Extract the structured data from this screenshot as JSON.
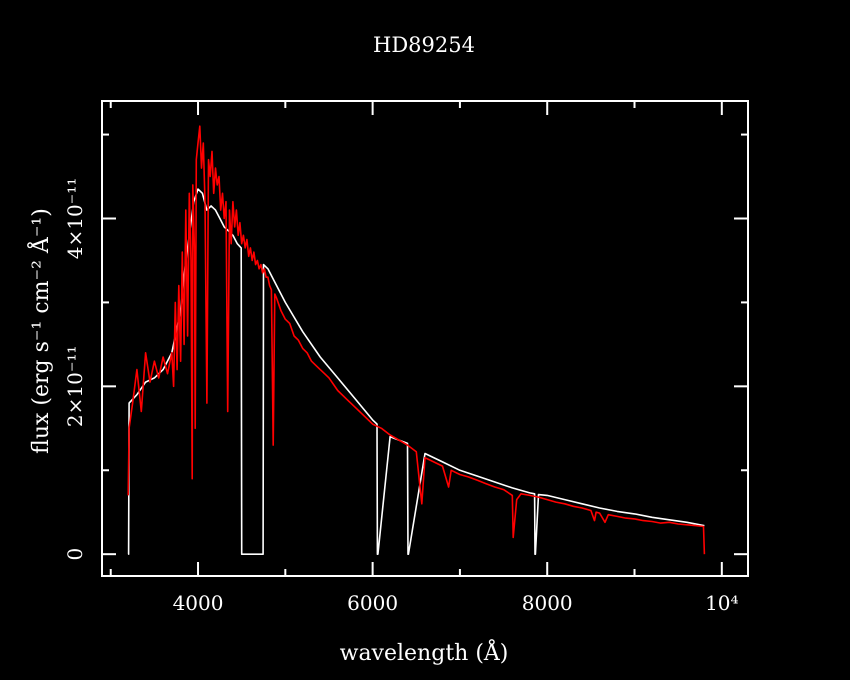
{
  "chart_data": {
    "type": "line",
    "title": "HD89254",
    "xlabel": "wavelength (Å)",
    "ylabel": "flux (erg s⁻¹ cm⁻² Å⁻¹)",
    "xlim": [
      2900,
      10300
    ],
    "ylim": [
      -2.6e-12,
      5.4e-11
    ],
    "x_ticks": [
      {
        "value": 4000,
        "label": "4000"
      },
      {
        "value": 6000,
        "label": "6000"
      },
      {
        "value": 8000,
        "label": "8000"
      },
      {
        "value": 10000,
        "label": "10⁴"
      }
    ],
    "y_ticks": [
      {
        "value": 0,
        "label": "0"
      },
      {
        "value": 2e-11,
        "label": "2×10⁻¹¹"
      },
      {
        "value": 4e-11,
        "label": "4×10⁻¹¹"
      }
    ],
    "grid": false,
    "series": [
      {
        "color": "#ffffff",
        "x": [
          3200,
          3205,
          3210,
          3300,
          3400,
          3500,
          3600,
          3700,
          3800,
          3850,
          3900,
          3950,
          4000,
          4050,
          4100,
          4150,
          4200,
          4250,
          4300,
          4350,
          4400,
          4450,
          4495,
          4500,
          4505,
          4600,
          4740,
          4745,
          4750,
          4800,
          4900,
          5000,
          5200,
          5400,
          5600,
          5800,
          6000,
          6050,
          6055,
          6060,
          6200,
          6400,
          6405,
          6410,
          6600,
          6800,
          7000,
          7200,
          7400,
          7600,
          7800,
          7855,
          7860,
          7865,
          7900,
          8000,
          8200,
          8400,
          8600,
          8800,
          9000,
          9200,
          9400,
          9600,
          9800
        ],
        "y": [
          0,
          0,
          1.8e-11,
          1.9e-11,
          2.05e-11,
          2.1e-11,
          2.2e-11,
          2.4e-11,
          2.9e-11,
          3.4e-11,
          3.8e-11,
          4.2e-11,
          4.35e-11,
          4.3e-11,
          4.1e-11,
          4.15e-11,
          4.1e-11,
          4e-11,
          3.9e-11,
          3.85e-11,
          3.8e-11,
          3.7e-11,
          3.65e-11,
          0,
          0,
          0,
          0,
          0,
          3.45e-11,
          3.4e-11,
          3.2e-11,
          3e-11,
          2.65e-11,
          2.35e-11,
          2.1e-11,
          1.85e-11,
          1.6e-11,
          1.55e-11,
          0,
          0,
          1.4e-11,
          1.32e-11,
          0,
          0,
          1.2e-11,
          1.1e-11,
          1e-11,
          9.3e-12,
          8.6e-12,
          7.9e-12,
          7.3e-12,
          7.2e-12,
          0,
          0,
          7.1e-12,
          7e-12,
          6.5e-12,
          6e-12,
          5.5e-12,
          5.1e-12,
          4.8e-12,
          4.4e-12,
          4.1e-12,
          3.8e-12,
          3.4e-12
        ]
      },
      {
        "color": "#ff0000",
        "x": [
          3200,
          3210,
          3250,
          3300,
          3350,
          3400,
          3450,
          3500,
          3550,
          3600,
          3650,
          3700,
          3720,
          3740,
          3760,
          3780,
          3800,
          3820,
          3840,
          3860,
          3880,
          3900,
          3920,
          3933,
          3940,
          3960,
          3968,
          3980,
          4000,
          4020,
          4040,
          4060,
          4080,
          4102,
          4120,
          4140,
          4160,
          4180,
          4200,
          4220,
          4240,
          4260,
          4280,
          4300,
          4320,
          4340,
          4360,
          4380,
          4400,
          4420,
          4440,
          4460,
          4480,
          4500,
          4520,
          4540,
          4560,
          4580,
          4600,
          4620,
          4640,
          4660,
          4680,
          4700,
          4720,
          4740,
          4760,
          4780,
          4800,
          4820,
          4840,
          4861,
          4880,
          4900,
          4950,
          5000,
          5050,
          5100,
          5150,
          5200,
          5250,
          5300,
          5350,
          5400,
          5450,
          5500,
          5600,
          5700,
          5800,
          5900,
          6000,
          6100,
          6200,
          6300,
          6400,
          6500,
          6563,
          6600,
          6700,
          6800,
          6870,
          6900,
          7000,
          7100,
          7200,
          7300,
          7400,
          7500,
          7600,
          7610,
          7650,
          7700,
          7800,
          7900,
          8000,
          8100,
          8200,
          8300,
          8400,
          8500,
          8542,
          8560,
          8600,
          8662,
          8700,
          8800,
          8900,
          9000,
          9100,
          9200,
          9300,
          9400,
          9500,
          9600,
          9700,
          9790,
          9800
        ],
        "y": [
          7e-12,
          1.5e-11,
          1.8e-11,
          2.2e-11,
          1.7e-11,
          2.4e-11,
          2.05e-11,
          2.3e-11,
          2.1e-11,
          2.35e-11,
          2.15e-11,
          2.4e-11,
          2e-11,
          3e-11,
          2.2e-11,
          3.2e-11,
          2.3e-11,
          3.6e-11,
          2.5e-11,
          4.1e-11,
          2.6e-11,
          4.3e-11,
          3.5e-11,
          9e-12,
          4.4e-11,
          3.6e-11,
          1.5e-11,
          4.7e-11,
          4.9e-11,
          5.1e-11,
          4.6e-11,
          4.9e-11,
          4.2e-11,
          1.8e-11,
          4.7e-11,
          4.5e-11,
          4.8e-11,
          4.3e-11,
          4.6e-11,
          4.4e-11,
          4.5e-11,
          4.1e-11,
          4.3e-11,
          4e-11,
          4.2e-11,
          1.7e-11,
          4.1e-11,
          3.7e-11,
          4.2e-11,
          3.9e-11,
          4.1e-11,
          3.8e-11,
          3.95e-11,
          3.7e-11,
          3.8e-11,
          3.65e-11,
          3.75e-11,
          3.55e-11,
          3.65e-11,
          3.5e-11,
          3.6e-11,
          3.45e-11,
          3.5e-11,
          3.4e-11,
          3.45e-11,
          3.35e-11,
          3.4e-11,
          3.3e-11,
          3.3e-11,
          3.2e-11,
          3.15e-11,
          1.3e-11,
          3.1e-11,
          3.05e-11,
          2.9e-11,
          2.8e-11,
          2.75e-11,
          2.6e-11,
          2.55e-11,
          2.45e-11,
          2.4e-11,
          2.3e-11,
          2.25e-11,
          2.2e-11,
          2.15e-11,
          2.1e-11,
          1.95e-11,
          1.85e-11,
          1.75e-11,
          1.65e-11,
          1.55e-11,
          1.5e-11,
          1.42e-11,
          1.36e-11,
          1.3e-11,
          1.22e-11,
          6e-12,
          1.15e-11,
          1.1e-11,
          1.05e-11,
          8e-12,
          1e-11,
          9.5e-12,
          9.2e-12,
          8.8e-12,
          8.4e-12,
          8e-12,
          7.7e-12,
          7e-12,
          2e-12,
          6.5e-12,
          7.2e-12,
          7e-12,
          6.8e-12,
          6.5e-12,
          6.2e-12,
          6e-12,
          5.7e-12,
          5.5e-12,
          5.2e-12,
          4e-12,
          5e-12,
          4.9e-12,
          3.8e-12,
          4.7e-12,
          4.5e-12,
          4.3e-12,
          4.2e-12,
          4e-12,
          3.9e-12,
          3.7e-12,
          3.8e-12,
          3.6e-12,
          3.5e-12,
          3.4e-12,
          3.3e-12,
          0
        ]
      }
    ]
  }
}
